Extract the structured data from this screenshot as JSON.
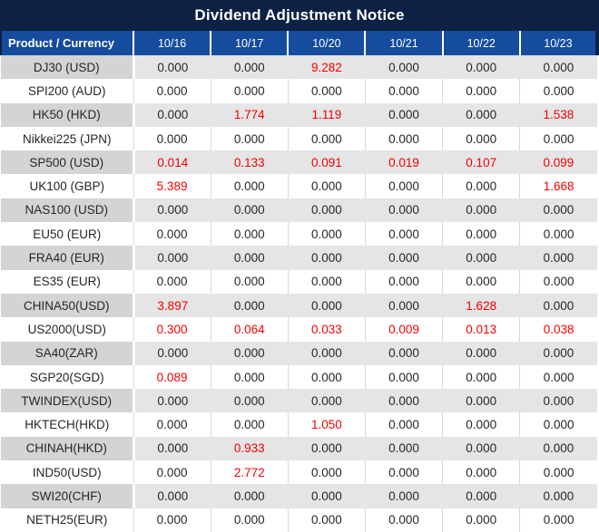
{
  "title": "Dividend Adjustment Notice",
  "table": {
    "product_header": "Product / Currency",
    "columns": [
      "10/16",
      "10/17",
      "10/20",
      "10/21",
      "10/22",
      "10/23"
    ],
    "rows": [
      {
        "product": "DJ30 (USD)",
        "values": [
          "0.000",
          "0.000",
          "9.282",
          "0.000",
          "0.000",
          "0.000"
        ]
      },
      {
        "product": "SPI200 (AUD)",
        "values": [
          "0.000",
          "0.000",
          "0.000",
          "0.000",
          "0.000",
          "0.000"
        ]
      },
      {
        "product": "HK50 (HKD)",
        "values": [
          "0.000",
          "1.774",
          "1.119",
          "0.000",
          "0.000",
          "1.538"
        ]
      },
      {
        "product": "Nikkei225 (JPN)",
        "values": [
          "0.000",
          "0.000",
          "0.000",
          "0.000",
          "0.000",
          "0.000"
        ]
      },
      {
        "product": "SP500 (USD)",
        "values": [
          "0.014",
          "0.133",
          "0.091",
          "0.019",
          "0.107",
          "0.099"
        ]
      },
      {
        "product": "UK100 (GBP)",
        "values": [
          "5.389",
          "0.000",
          "0.000",
          "0.000",
          "0.000",
          "1.668"
        ]
      },
      {
        "product": "NAS100 (USD)",
        "values": [
          "0.000",
          "0.000",
          "0.000",
          "0.000",
          "0.000",
          "0.000"
        ]
      },
      {
        "product": "EU50 (EUR)",
        "values": [
          "0.000",
          "0.000",
          "0.000",
          "0.000",
          "0.000",
          "0.000"
        ]
      },
      {
        "product": "FRA40 (EUR)",
        "values": [
          "0.000",
          "0.000",
          "0.000",
          "0.000",
          "0.000",
          "0.000"
        ]
      },
      {
        "product": "ES35 (EUR)",
        "values": [
          "0.000",
          "0.000",
          "0.000",
          "0.000",
          "0.000",
          "0.000"
        ]
      },
      {
        "product": "CHINA50(USD)",
        "values": [
          "3.897",
          "0.000",
          "0.000",
          "0.000",
          "1.628",
          "0.000"
        ]
      },
      {
        "product": "US2000(USD)",
        "values": [
          "0.300",
          "0.064",
          "0.033",
          "0.009",
          "0.013",
          "0.038"
        ]
      },
      {
        "product": "SA40(ZAR)",
        "values": [
          "0.000",
          "0.000",
          "0.000",
          "0.000",
          "0.000",
          "0.000"
        ]
      },
      {
        "product": "SGP20(SGD)",
        "values": [
          "0.089",
          "0.000",
          "0.000",
          "0.000",
          "0.000",
          "0.000"
        ]
      },
      {
        "product": "TWINDEX(USD)",
        "values": [
          "0.000",
          "0.000",
          "0.000",
          "0.000",
          "0.000",
          "0.000"
        ]
      },
      {
        "product": "HKTECH(HKD)",
        "values": [
          "0.000",
          "0.000",
          "1.050",
          "0.000",
          "0.000",
          "0.000"
        ]
      },
      {
        "product": "CHINAH(HKD)",
        "values": [
          "0.000",
          "0.933",
          "0.000",
          "0.000",
          "0.000",
          "0.000"
        ]
      },
      {
        "product": "IND50(USD)",
        "values": [
          "0.000",
          "2.772",
          "0.000",
          "0.000",
          "0.000",
          "0.000"
        ]
      },
      {
        "product": "SWI20(CHF)",
        "values": [
          "0.000",
          "0.000",
          "0.000",
          "0.000",
          "0.000",
          "0.000"
        ]
      },
      {
        "product": "NETH25(EUR)",
        "values": [
          "0.000",
          "0.000",
          "0.000",
          "0.000",
          "0.000",
          "0.000"
        ]
      }
    ],
    "value_style_rule": "nonzero values rendered in red, zero values in black"
  },
  "colors": {
    "title_bar_navy": "#0c2144",
    "header_blue": "#154c9d",
    "nonzero_red": "#f50000",
    "text_black": "#262626",
    "striped_product_gray": "#d4d4d4",
    "striped_value_gray": "#e5e5e5",
    "plain_row_white": "#ffffff"
  },
  "chart_data": {
    "type": "table",
    "title": "Dividend Adjustment Notice",
    "columns": [
      "Product / Currency",
      "10/16",
      "10/17",
      "10/20",
      "10/21",
      "10/22",
      "10/23"
    ],
    "rows": [
      [
        "DJ30 (USD)",
        0.0,
        0.0,
        9.282,
        0.0,
        0.0,
        0.0
      ],
      [
        "SPI200 (AUD)",
        0.0,
        0.0,
        0.0,
        0.0,
        0.0,
        0.0
      ],
      [
        "HK50 (HKD)",
        0.0,
        1.774,
        1.119,
        0.0,
        0.0,
        1.538
      ],
      [
        "Nikkei225 (JPN)",
        0.0,
        0.0,
        0.0,
        0.0,
        0.0,
        0.0
      ],
      [
        "SP500 (USD)",
        0.014,
        0.133,
        0.091,
        0.019,
        0.107,
        0.099
      ],
      [
        "UK100 (GBP)",
        5.389,
        0.0,
        0.0,
        0.0,
        0.0,
        1.668
      ],
      [
        "NAS100 (USD)",
        0.0,
        0.0,
        0.0,
        0.0,
        0.0,
        0.0
      ],
      [
        "EU50 (EUR)",
        0.0,
        0.0,
        0.0,
        0.0,
        0.0,
        0.0
      ],
      [
        "FRA40 (EUR)",
        0.0,
        0.0,
        0.0,
        0.0,
        0.0,
        0.0
      ],
      [
        "ES35 (EUR)",
        0.0,
        0.0,
        0.0,
        0.0,
        0.0,
        0.0
      ],
      [
        "CHINA50(USD)",
        3.897,
        0.0,
        0.0,
        0.0,
        1.628,
        0.0
      ],
      [
        "US2000(USD)",
        0.3,
        0.064,
        0.033,
        0.009,
        0.013,
        0.038
      ],
      [
        "SA40(ZAR)",
        0.0,
        0.0,
        0.0,
        0.0,
        0.0,
        0.0
      ],
      [
        "SGP20(SGD)",
        0.089,
        0.0,
        0.0,
        0.0,
        0.0,
        0.0
      ],
      [
        "TWINDEX(USD)",
        0.0,
        0.0,
        0.0,
        0.0,
        0.0,
        0.0
      ],
      [
        "HKTECH(HKD)",
        0.0,
        0.0,
        1.05,
        0.0,
        0.0,
        0.0
      ],
      [
        "CHINAH(HKD)",
        0.0,
        0.933,
        0.0,
        0.0,
        0.0,
        0.0
      ],
      [
        "IND50(USD)",
        0.0,
        2.772,
        0.0,
        0.0,
        0.0,
        0.0
      ],
      [
        "SWI20(CHF)",
        0.0,
        0.0,
        0.0,
        0.0,
        0.0,
        0.0
      ],
      [
        "NETH25(EUR)",
        0.0,
        0.0,
        0.0,
        0.0,
        0.0,
        0.0
      ]
    ]
  }
}
